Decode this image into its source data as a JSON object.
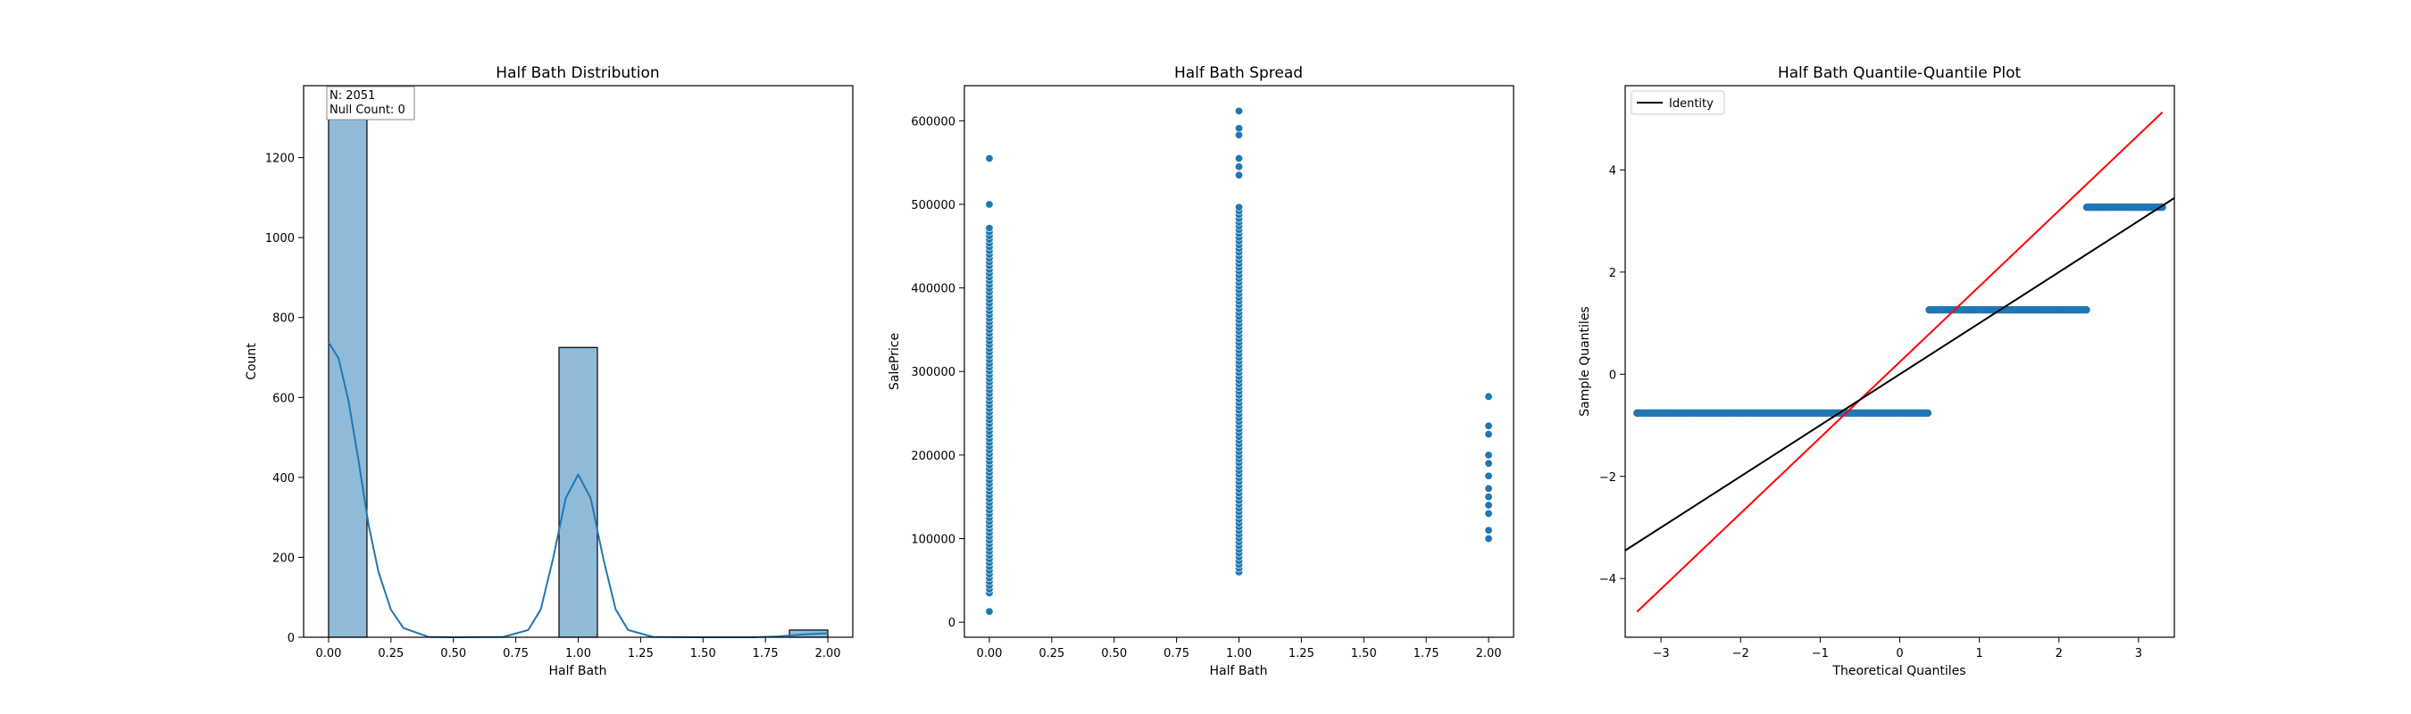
{
  "colors": {
    "hist_fill": "#8fbbd9",
    "series_blue": "#1f77b4",
    "identity_line": "#000000",
    "fit_line": "#ff0000",
    "axes": "#000000"
  },
  "chart_data": [
    {
      "type": "bar",
      "title": "Half Bath Distribution",
      "xlabel": "Half Bath",
      "ylabel": "Count",
      "xlim": [
        -0.1,
        2.1
      ],
      "ylim": [
        0,
        1380
      ],
      "xticks": [
        0.0,
        0.25,
        0.5,
        0.75,
        1.0,
        1.25,
        1.5,
        1.75,
        2.0
      ],
      "xtick_labels": [
        "0.00",
        "0.25",
        "0.50",
        "0.75",
        "1.00",
        "1.25",
        "1.50",
        "1.75",
        "2.00"
      ],
      "yticks": [
        0,
        200,
        400,
        600,
        800,
        1000,
        1200
      ],
      "ytick_labels": [
        "0",
        "200",
        "400",
        "600",
        "800",
        "1000",
        "1200"
      ],
      "bins": [
        {
          "x0": 0.0,
          "x1": 0.1538,
          "count": 1308
        },
        {
          "x0": 0.9231,
          "x1": 1.0769,
          "count": 725
        },
        {
          "x0": 1.8462,
          "x1": 2.0,
          "count": 18
        }
      ],
      "kde": [
        [
          0,
          738
        ],
        [
          0.04,
          698
        ],
        [
          0.08,
          591
        ],
        [
          0.12,
          442
        ],
        [
          0.16,
          282
        ],
        [
          0.2,
          163
        ],
        [
          0.25,
          69
        ],
        [
          0.3,
          23
        ],
        [
          0.4,
          1
        ],
        [
          0.5,
          0
        ],
        [
          0.7,
          1
        ],
        [
          0.8,
          18
        ],
        [
          0.85,
          70
        ],
        [
          0.9,
          198
        ],
        [
          0.95,
          348
        ],
        [
          1.0,
          407
        ],
        [
          1.05,
          348
        ],
        [
          1.1,
          198
        ],
        [
          1.15,
          70
        ],
        [
          1.2,
          18
        ],
        [
          1.3,
          1
        ],
        [
          1.5,
          0
        ],
        [
          1.7,
          0
        ],
        [
          1.8,
          2
        ],
        [
          1.9,
          7
        ],
        [
          2.0,
          10
        ]
      ],
      "annotation": [
        "N: 2051",
        "Null Count: 0"
      ]
    },
    {
      "type": "scatter",
      "title": "Half Bath Spread",
      "xlabel": "Half Bath",
      "ylabel": "SalePrice",
      "xlim": [
        -0.1,
        2.1
      ],
      "ylim": [
        -18000,
        642000
      ],
      "xticks": [
        0.0,
        0.25,
        0.5,
        0.75,
        1.0,
        1.25,
        1.5,
        1.75,
        2.0
      ],
      "xtick_labels": [
        "0.00",
        "0.25",
        "0.50",
        "0.75",
        "1.00",
        "1.25",
        "1.50",
        "1.75",
        "2.00"
      ],
      "yticks": [
        0,
        100000,
        200000,
        300000,
        400000,
        500000,
        600000
      ],
      "ytick_labels": [
        "0",
        "100000",
        "200000",
        "300000",
        "400000",
        "500000",
        "600000"
      ],
      "columns": [
        {
          "x": 0,
          "y_dense_min": 35000,
          "y_dense_max": 475000,
          "y_extra": [
            12789,
            500000,
            555000
          ]
        },
        {
          "x": 1,
          "y_dense_min": 60000,
          "y_dense_max": 500000,
          "y_extra": [
            535000,
            545000,
            555000,
            583000,
            591000,
            611657
          ]
        },
        {
          "x": 2,
          "y_dense_min": 100000,
          "y_dense_max": 0,
          "y_extra": [
            100000,
            110000,
            130000,
            140000,
            150000,
            160000,
            175000,
            190000,
            200000,
            225000,
            235000,
            270000
          ]
        }
      ]
    },
    {
      "type": "scatter",
      "title": "Half Bath Quantile-Quantile Plot",
      "xlabel": "Theoretical Quantiles",
      "ylabel": "Sample Quantiles",
      "xlim": [
        -3.45,
        3.45
      ],
      "ylim": [
        -5.15,
        5.65
      ],
      "xticks": [
        -3,
        -2,
        -1,
        0,
        1,
        2,
        3
      ],
      "xtick_labels": [
        "−3",
        "−2",
        "−1",
        "0",
        "1",
        "2",
        "3"
      ],
      "yticks": [
        -4,
        -2,
        0,
        2,
        4
      ],
      "ytick_labels": [
        "−4",
        "−2",
        "0",
        "2",
        "4"
      ],
      "legend": {
        "label": "Identity",
        "position": "upper left"
      },
      "identity_line": [
        [
          -3.45,
          -3.45
        ],
        [
          3.45,
          3.45
        ]
      ],
      "fit_line": [
        [
          -3.3,
          -4.65
        ],
        [
          3.3,
          5.13
        ]
      ],
      "steps": [
        {
          "y": -0.76,
          "x_min": -3.3,
          "x_max": 0.37
        },
        {
          "y": 1.26,
          "x_min": 0.37,
          "x_max": 2.35
        },
        {
          "y": 3.27,
          "x_min": 2.35,
          "x_max": 3.3
        }
      ]
    }
  ]
}
